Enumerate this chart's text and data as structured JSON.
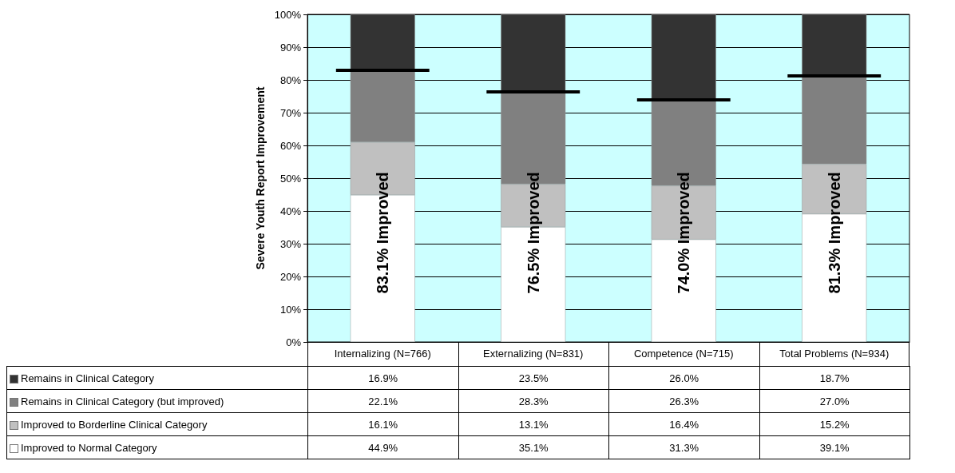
{
  "chart_data": {
    "type": "bar",
    "stacked": true,
    "ylabel": "Severe Youth Report Improvement",
    "categories": [
      "Internalizing (N=766)",
      "Externalizing (N=831)",
      "Competence (N=715)",
      "Total Problems (N=934)"
    ],
    "series": [
      {
        "name": "Improved to Normal Category",
        "color": "#ffffff",
        "values": [
          44.9,
          35.1,
          31.3,
          39.1
        ],
        "value_labels": [
          "44.9%",
          "35.1%",
          "31.3%",
          "39.1%"
        ]
      },
      {
        "name": "Improved to Borderline Clinical Category",
        "color": "#c0c0c0",
        "values": [
          16.1,
          13.1,
          16.4,
          15.2
        ],
        "value_labels": [
          "16.1%",
          "13.1%",
          "16.4%",
          "15.2%"
        ]
      },
      {
        "name": "Remains in Clinical Category (but improved)",
        "color": "#808080",
        "values": [
          22.1,
          28.3,
          26.3,
          27.0
        ],
        "value_labels": [
          "22.1%",
          "28.3%",
          "26.3%",
          "27.0%"
        ]
      },
      {
        "name": "Remains in Clinical Category",
        "color": "#333333",
        "values": [
          16.9,
          23.5,
          26.0,
          18.7
        ],
        "value_labels": [
          "16.9%",
          "23.5%",
          "26.0%",
          "18.7%"
        ]
      }
    ],
    "ref_lines": [
      {
        "axis": "y",
        "value": 83.1,
        "color": "#000000"
      },
      {
        "axis": "y",
        "value": 76.5,
        "color": "#000000"
      },
      {
        "axis": "y",
        "value": 74.0,
        "color": "#000000"
      },
      {
        "axis": "y",
        "value": 81.3,
        "color": "#000000"
      }
    ],
    "annotations": [
      "83.1% Improved",
      "76.5% Improved",
      "74.0% Improved",
      "81.3% Improved"
    ],
    "ylim": [
      0,
      100
    ],
    "yticks": [
      {
        "value": 0,
        "label": "0%"
      },
      {
        "value": 10,
        "label": "10%"
      },
      {
        "value": 20,
        "label": "20%"
      },
      {
        "value": 30,
        "label": "30%"
      },
      {
        "value": 40,
        "label": "40%"
      },
      {
        "value": 50,
        "label": "50%"
      },
      {
        "value": 60,
        "label": "60%"
      },
      {
        "value": 70,
        "label": "70%"
      },
      {
        "value": 80,
        "label": "80%"
      },
      {
        "value": 90,
        "label": "90%"
      },
      {
        "value": 100,
        "label": "100%"
      }
    ],
    "grid": "y",
    "legend": "bottom"
  }
}
